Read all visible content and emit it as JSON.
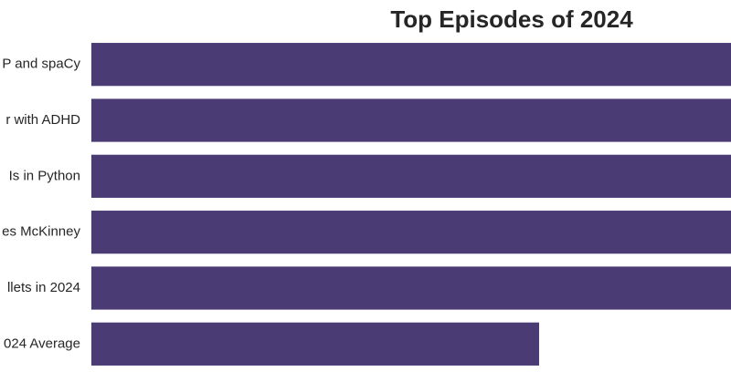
{
  "chart_data": {
    "type": "bar",
    "orientation": "horizontal",
    "title": "Top Episodes of 2024",
    "categories": [
      "P and spaCy",
      "r with ADHD",
      "Is in Python",
      "es McKinney",
      "llets in 2024",
      "024 Average"
    ],
    "values": [
      100,
      100,
      100,
      100,
      100,
      70
    ],
    "xlim": [
      0,
      100
    ],
    "grid": false,
    "xlabel": "",
    "ylabel": "",
    "colors": {
      "bar": "#4a3b74"
    }
  }
}
